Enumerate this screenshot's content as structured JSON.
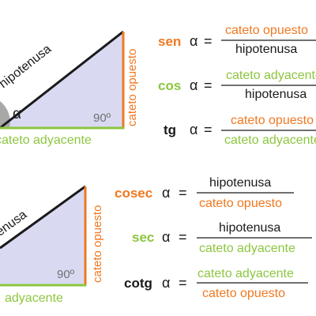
{
  "colors": {
    "orange": "#f07820",
    "green": "#8cc63f",
    "black": "#1a1a1a",
    "gray": "#707070",
    "triangle_fill": "#d9daf2",
    "angle_fill": "#a8a8a8"
  },
  "top_triangle": {
    "hypotenuse_label": "hipotenusa",
    "opposite_label": "cateto opuesto",
    "adjacent_label": "cateto adyacente",
    "angle_label": "α",
    "right_angle_label": "90º"
  },
  "bottom_triangle": {
    "hypotenuse_label": "tenusa",
    "opposite_label": "cateto opuesto",
    "adjacent_label": "adyacente",
    "right_angle_label": "90º"
  },
  "formulas_top": [
    {
      "fn": "sen",
      "alpha": "α",
      "eq": "=",
      "numerator": "cateto opuesto",
      "denominator": "hipotenusa"
    },
    {
      "fn": "cos",
      "alpha": "α",
      "eq": "=",
      "numerator": "cateto adyacente",
      "denominator": "hipotenusa"
    },
    {
      "fn": "tg",
      "alpha": "α",
      "eq": "=",
      "numerator": "cateto opuesto",
      "denominator": "cateto adyacente"
    }
  ],
  "formulas_bottom": [
    {
      "fn": "cosec",
      "alpha": "α",
      "eq": "=",
      "numerator": "hipotenusa",
      "denominator": "cateto opuesto"
    },
    {
      "fn": "sec",
      "alpha": "α",
      "eq": "=",
      "numerator": "hipotenusa",
      "denominator": "cateto adyacente"
    },
    {
      "fn": "cotg",
      "alpha": "α",
      "eq": "=",
      "numerator": "cateto adyacente",
      "denominator": "cateto opuesto"
    }
  ]
}
